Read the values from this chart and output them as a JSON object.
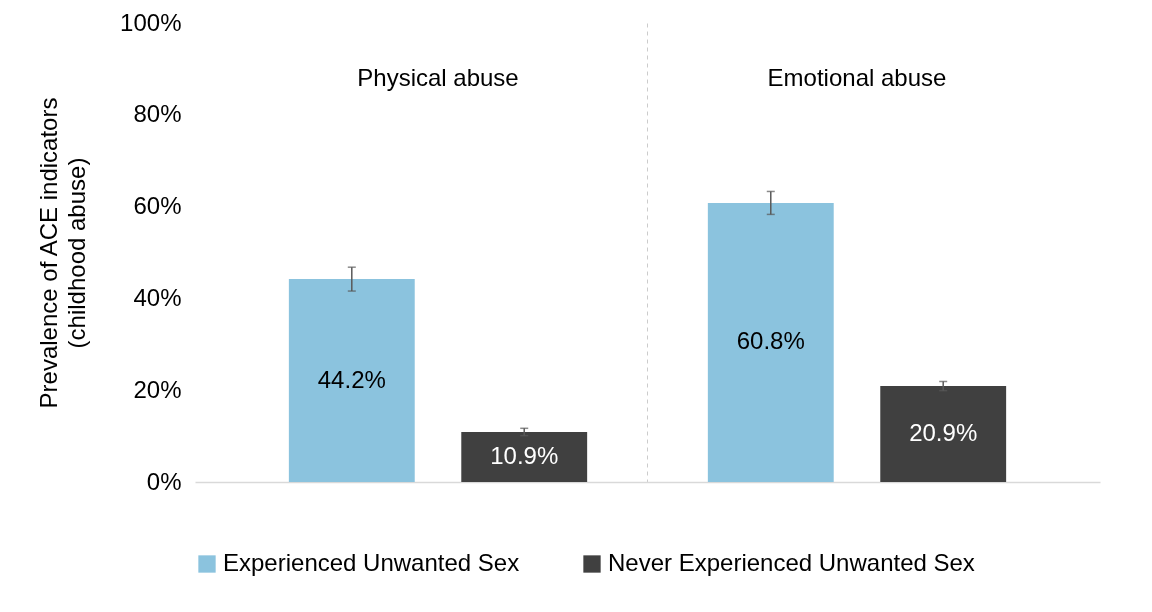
{
  "chart_data": {
    "type": "bar",
    "ylabel": "Prevalence of ACE indicators\n(childhood abuse)",
    "categories": [
      "Physical abuse",
      "Emotional abuse"
    ],
    "series": [
      {
        "name": "Experienced Unwanted Sex",
        "color": "#8bc3de",
        "values": [
          44.2,
          60.8
        ],
        "errors": [
          2.6,
          2.5
        ]
      },
      {
        "name": "Never Experienced Unwanted Sex",
        "color": "#404040",
        "values": [
          10.9,
          20.9
        ],
        "errors": [
          0.8,
          1.0
        ]
      }
    ],
    "ylim": [
      0,
      100
    ],
    "yticks": [
      {
        "value": 0,
        "label": "0%"
      },
      {
        "value": 20,
        "label": "20%"
      },
      {
        "value": 40,
        "label": "40%"
      },
      {
        "value": 60,
        "label": "60%"
      },
      {
        "value": 80,
        "label": "80%"
      },
      {
        "value": 100,
        "label": "100%"
      }
    ],
    "value_labels": [
      [
        "44.2%",
        "60.8%"
      ],
      [
        "10.9%",
        "20.9%"
      ]
    ],
    "grid": false,
    "legend": "bottom"
  }
}
